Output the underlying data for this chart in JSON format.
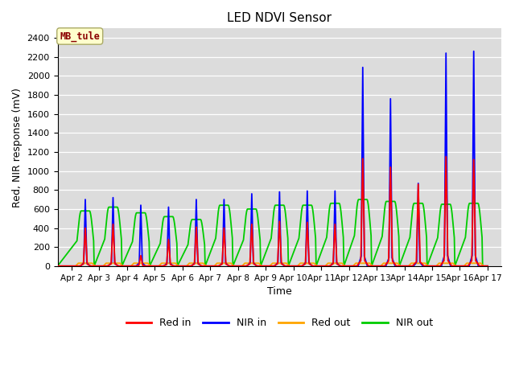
{
  "title": "LED NDVI Sensor",
  "xlabel": "Time",
  "ylabel": "Red, NIR response (mV)",
  "ylim": [
    0,
    2500
  ],
  "yticks": [
    0,
    200,
    400,
    600,
    800,
    1000,
    1200,
    1400,
    1600,
    1800,
    2000,
    2200,
    2400
  ],
  "annotation": "MB_tule",
  "annotation_color": "#8B0000",
  "annotation_bg": "#FFFFCC",
  "bg_color": "#DCDCDC",
  "series_colors": {
    "red_in": "#FF0000",
    "nir_in": "#0000FF",
    "red_out": "#FFA500",
    "nir_out": "#00CC00"
  },
  "legend_labels": [
    "Red in",
    "NIR in",
    "Red out",
    "NIR out"
  ],
  "xtick_labels": [
    "Apr 2",
    "Apr 3",
    "Apr 4",
    "Apr 5",
    "Apr 6",
    "Apr 7",
    "Apr 8",
    "Apr 9",
    "Apr 10",
    "Apr 11",
    "Apr 12",
    "Apr 13",
    "Apr 14",
    "Apr 15",
    "Apr 16",
    "Apr 17"
  ],
  "xtick_positions": [
    2,
    3,
    4,
    5,
    6,
    7,
    8,
    9,
    10,
    11,
    12,
    13,
    14,
    15,
    16,
    17
  ],
  "xlim": [
    1.5,
    17.5
  ],
  "peaks": {
    "red_in": [
      400,
      440,
      110,
      280,
      410,
      400,
      440,
      470,
      460,
      440,
      1130,
      1040,
      860,
      1150,
      1120,
      0
    ],
    "nir_in": [
      700,
      720,
      640,
      620,
      700,
      700,
      760,
      780,
      790,
      790,
      2090,
      1760,
      870,
      2240,
      2260,
      0
    ],
    "red_out": [
      30,
      30,
      30,
      30,
      30,
      30,
      30,
      30,
      30,
      30,
      30,
      30,
      30,
      30,
      30,
      0
    ],
    "nir_out": [
      580,
      620,
      560,
      520,
      490,
      640,
      600,
      640,
      640,
      660,
      700,
      680,
      660,
      650,
      660,
      0
    ]
  },
  "days": [
    2,
    3,
    4,
    5,
    6,
    7,
    8,
    9,
    10,
    11,
    12,
    13,
    14,
    15,
    16,
    17
  ]
}
